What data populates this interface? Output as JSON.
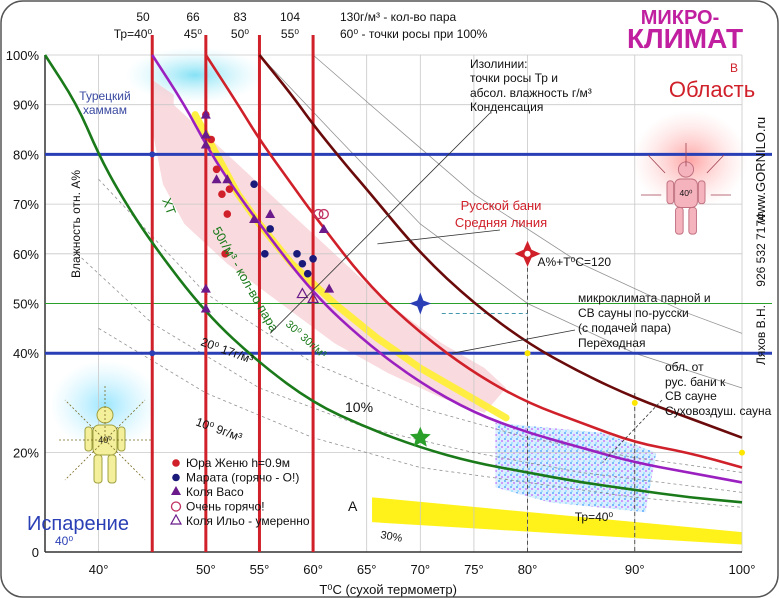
{
  "chart_data": {
    "type": "line",
    "title": [
      "МИКРО-",
      "КЛИМАТ"
    ],
    "xlabel": "T⁰C (сухой термометр)",
    "ylabel": "Влажность отн. A%",
    "xlim": [
      35,
      100
    ],
    "ylim": [
      0,
      100
    ],
    "x_ticks": [
      {
        "v": 40,
        "label": "40°"
      },
      {
        "v": 50,
        "label": "50°"
      },
      {
        "v": 55,
        "label": "55°"
      },
      {
        "v": 60,
        "label": "60°"
      },
      {
        "v": 65,
        "label": "65°"
      },
      {
        "v": 70,
        "label": "70°"
      },
      {
        "v": 75,
        "label": "75°"
      },
      {
        "v": 80,
        "label": "80°"
      },
      {
        "v": 90,
        "label": "90°"
      },
      {
        "v": 100,
        "label": "100°"
      }
    ],
    "y_ticks": [
      {
        "v": 0,
        "label": "0"
      },
      {
        "v": 20,
        "label": "20%"
      },
      {
        "v": 40,
        "label": "40%"
      },
      {
        "v": 50,
        "label": "50%"
      },
      {
        "v": 60,
        "label": "60%"
      },
      {
        "v": 70,
        "label": "70%"
      },
      {
        "v": 80,
        "label": "80%"
      },
      {
        "v": 90,
        "label": "90%"
      },
      {
        "v": 100,
        "label": "100%"
      }
    ],
    "top_header": {
      "row1": [
        "50",
        "66",
        "83",
        "104",
        "130г/м³ - кол-во пара"
      ],
      "row2": [
        "Тр=40⁰",
        "45⁰",
        "50⁰",
        "55⁰",
        "60⁰ - точки росы при 100%"
      ],
      "x_positions": [
        45,
        45,
        50,
        55,
        60
      ]
    },
    "vertical_lines": [
      {
        "x": 45,
        "color": "#d0202a"
      },
      {
        "x": 50,
        "color": "#d0202a"
      },
      {
        "x": 55,
        "color": "#d0202a"
      },
      {
        "x": 60,
        "color": "#d0202a"
      }
    ],
    "horizontal_lines": [
      {
        "y": 80,
        "color": "#2a3fb5",
        "width": 3
      },
      {
        "y": 40,
        "color": "#2a3fb5",
        "width": 3
      },
      {
        "y": 50,
        "color": "#2aa02a",
        "width": 1
      }
    ],
    "series": [
      {
        "name": "Тр=40⁰",
        "color": "#1a7a1a",
        "x": [
          35,
          38,
          40,
          42,
          45,
          50,
          55,
          60,
          65,
          70,
          75,
          80,
          85,
          90,
          95,
          100
        ],
        "y": [
          100,
          90,
          80,
          72,
          62,
          48,
          38,
          30,
          25,
          21,
          18,
          16,
          14,
          12.5,
          11,
          10
        ]
      },
      {
        "name": "",
        "color": "#9b20c0",
        "x": [
          45,
          48,
          50,
          52,
          55,
          60,
          65,
          70,
          75,
          80,
          85,
          90,
          95,
          100
        ],
        "y": [
          100,
          90,
          82,
          75,
          66,
          52,
          42,
          34,
          28,
          24,
          21,
          18,
          16,
          14
        ]
      },
      {
        "name": "",
        "color": "#d0202a",
        "x": [
          50,
          53,
          55,
          58,
          60,
          65,
          70,
          75,
          80,
          85,
          90,
          95,
          100
        ],
        "y": [
          100,
          90,
          83,
          74,
          68,
          54,
          44,
          36,
          30,
          26,
          22,
          20,
          17
        ]
      },
      {
        "name": "",
        "color": "#6a0a0a",
        "x": [
          55,
          58,
          60,
          63,
          65,
          70,
          75,
          80,
          85,
          90,
          95,
          100
        ],
        "y": [
          100,
          92,
          86,
          78,
          73,
          60,
          50,
          42,
          36,
          31,
          27,
          23
        ]
      }
    ],
    "markers": [
      {
        "group": "Юра Женю h=0.9м",
        "shape": "circle",
        "color": "#d0202a",
        "points": [
          [
            50,
            88
          ],
          [
            50.5,
            83
          ],
          [
            51,
            77
          ],
          [
            51.5,
            72
          ],
          [
            52,
            68
          ],
          [
            51.8,
            60
          ],
          [
            52.2,
            73
          ]
        ]
      },
      {
        "group": "Марата (горячо - О!)",
        "shape": "circle",
        "color": "#1a1a7a",
        "points": [
          [
            54.5,
            74
          ],
          [
            55.5,
            60
          ],
          [
            56,
            65
          ],
          [
            58.5,
            60
          ],
          [
            59,
            58
          ],
          [
            60,
            59
          ],
          [
            59.5,
            56
          ]
        ]
      },
      {
        "group": "Коля Васо",
        "shape": "triangle",
        "color": "#6a1a8a",
        "points": [
          [
            50,
            88
          ],
          [
            50,
            84
          ],
          [
            51,
            75
          ],
          [
            52,
            75
          ],
          [
            50,
            53
          ],
          [
            50,
            49
          ],
          [
            54.5,
            67
          ],
          [
            56,
            68
          ],
          [
            61,
            65
          ],
          [
            61.5,
            53
          ],
          [
            50,
            82
          ]
        ]
      },
      {
        "group": "Очень горячо!",
        "shape": "circle-open",
        "color": "#c03060",
        "points": [
          [
            60.5,
            68
          ],
          [
            61,
            68
          ]
        ]
      },
      {
        "group": "Коля Ильо - умеренно",
        "shape": "triangle-open",
        "color": "#6a1a8a",
        "points": [
          [
            59,
            52
          ],
          [
            60,
            51
          ]
        ]
      }
    ],
    "special_points": [
      {
        "x": 80,
        "y": 60,
        "label": "A%+T⁰C=120",
        "color": "#d0202a"
      },
      {
        "x": 70,
        "y": 50,
        "label": "",
        "color": "#2a3fb5"
      },
      {
        "x": 70,
        "y": 23,
        "label": "",
        "color": "#2aa02a"
      }
    ],
    "annotations": [
      {
        "text": "Турецкий хаммам",
        "color": "#3a4aa0"
      },
      {
        "text": "Изолинии:",
        "color": "#111"
      },
      {
        "text": "точки росы Тр и",
        "color": "#111"
      },
      {
        "text": "абсол. влажность г/м³",
        "color": "#111"
      },
      {
        "text": "Конденсация",
        "color": "#d0202a"
      },
      {
        "text": "B",
        "color": "#d0202a"
      },
      {
        "text": "Область",
        "color": "#d0202a"
      },
      {
        "text": "Русской бани",
        "color": "#d0202a"
      },
      {
        "text": "Средняя линия",
        "color": "#111"
      },
      {
        "text": "микроклимата парной и",
        "color": "#111"
      },
      {
        "text": "СВ сауны по-русски",
        "color": "#111"
      },
      {
        "text": "(с подачей пара)",
        "color": "#111"
      },
      {
        "text": "Переходная",
        "color": "#111"
      },
      {
        "text": "обл. от",
        "color": "#111"
      },
      {
        "text": "рус. бани к",
        "color": "#111"
      },
      {
        "text": "СВ сауне",
        "color": "#111"
      },
      {
        "text": "Суховоздуш. сауна",
        "color": "#111"
      },
      {
        "text": "Тр=40⁰",
        "color": "#1a7a1a"
      },
      {
        "text": "ХТ",
        "color": "#1a7a1a"
      },
      {
        "text": "50г/м³ - кол-во пара",
        "color": "#1a7a1a"
      },
      {
        "text": "30⁰ 30г/м³",
        "color": "#111"
      },
      {
        "text": "20⁰ 17г/м³",
        "color": "#111"
      },
      {
        "text": "10⁰ 9г/м³",
        "color": "#111"
      },
      {
        "text": "30%",
        "color": "#111"
      },
      {
        "text": "10%",
        "color": "#111"
      },
      {
        "text": "A",
        "color": "#2a3fb5"
      },
      {
        "text": "Испарение",
        "color": "#2a3fb5"
      },
      {
        "text": "40⁰",
        "color": "#111"
      }
    ],
    "side_text": [
      "www.GORNILO.ru",
      "Ляхов В.Н.",
      "926 532 7174"
    ],
    "legend": {
      "placement": "bottom-left"
    }
  }
}
